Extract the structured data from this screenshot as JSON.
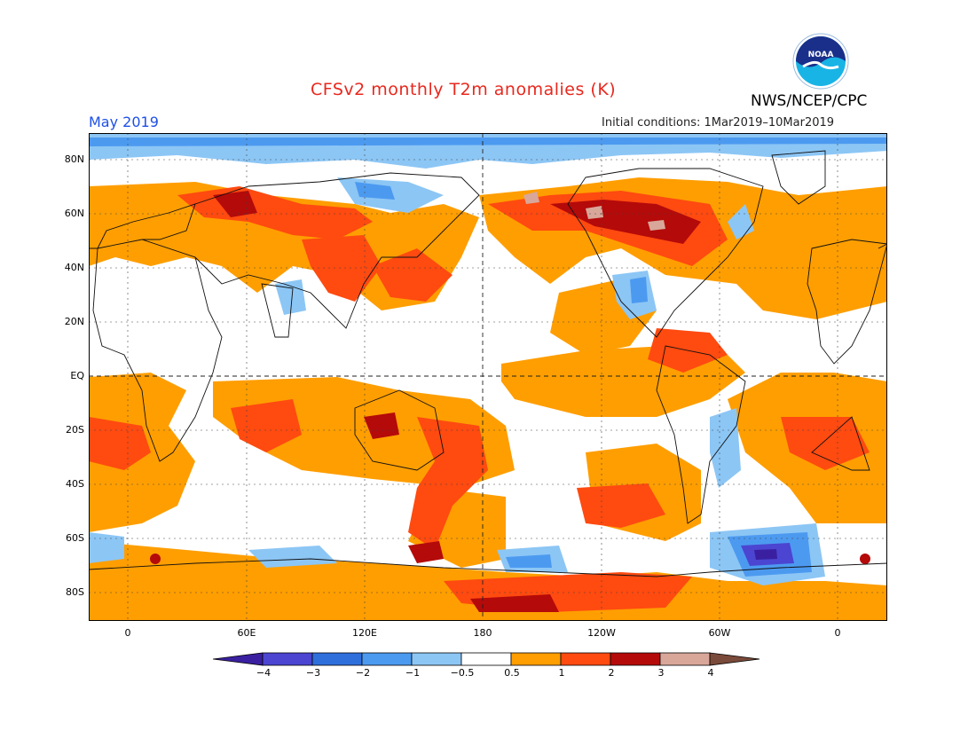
{
  "header": {
    "title": "CFSv2 monthly T2m anomalies (K)",
    "month": "May 2019",
    "initial_conditions": "Initial conditions: 1Mar2019–10Mar2019",
    "agency": "NWS/NCEP/CPC",
    "logo_text": "NOAA"
  },
  "axes": {
    "lat_labels": [
      "80N",
      "60N",
      "40N",
      "20N",
      "EQ",
      "20S",
      "40S",
      "60S",
      "80S"
    ],
    "lon_labels": [
      "0",
      "60E",
      "120E",
      "180",
      "120W",
      "60W",
      "0"
    ]
  },
  "colorbar": {
    "labels": [
      "−4",
      "−3",
      "−2",
      "−1",
      "−0.5",
      "0.5",
      "1",
      "2",
      "3",
      "4"
    ],
    "colors": [
      "#3a20a0",
      "#4b45d2",
      "#2f6fdc",
      "#4c9af0",
      "#8cc6f5",
      "#ffffff",
      "#ff9e00",
      "#ff4a10",
      "#b40a0a",
      "#d8a79a",
      "#7a4a3a"
    ]
  },
  "colors": {
    "warm1": "#ff9e00",
    "warm2": "#ff4a10",
    "warm3": "#b40a0a",
    "warm4": "#d8a79a",
    "cool1": "#8cc6f5",
    "cool2": "#4c9af0",
    "cool3": "#2f6fdc",
    "cool4": "#4b45d2",
    "title": "#e8281e",
    "month": "#1e50e6"
  }
}
